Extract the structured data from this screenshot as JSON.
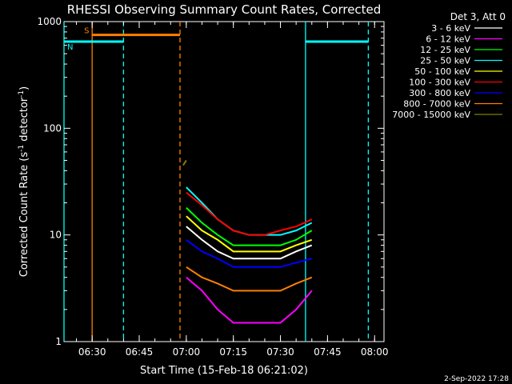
{
  "colors": {
    "background": "#000000",
    "foreground": "#ffffff",
    "saa": "#ff7f00",
    "night": "#00ffff"
  },
  "chart_data": {
    "type": "line",
    "title": "RHESSI Observing Summary Count Rates, Corrected",
    "xlabel": "Start Time (15-Feb-18 06:21:02)",
    "ylabel": "Corrected Count Rate (s⁻¹ detector⁻¹)",
    "ylabel_parts": [
      "Corrected Count Rate (s",
      "-1",
      " detector",
      "-1",
      ")"
    ],
    "yscale": "log",
    "ylim": [
      1,
      1000
    ],
    "ytick_labels": [
      "1",
      "10",
      "100",
      "1000"
    ],
    "ytick_values": [
      1,
      10,
      100,
      1000
    ],
    "xlim": [
      "06:21:02",
      "08:03:00"
    ],
    "xtick_labels": [
      "06:30",
      "06:45",
      "07:00",
      "07:15",
      "07:30",
      "07:45",
      "08:00"
    ],
    "grid": false,
    "legend_placement": "right",
    "legend_title": "Det 3, Att 0",
    "series": [
      {
        "name": "3 - 6 keV",
        "color": "#ffffff",
        "x": [
          "07:00",
          "07:05",
          "07:10",
          "07:15",
          "07:20",
          "07:25",
          "07:30",
          "07:35",
          "07:40"
        ],
        "values": [
          12,
          9,
          7,
          6,
          6,
          6,
          6,
          7,
          8
        ]
      },
      {
        "name": "6 - 12 keV",
        "color": "#ff00ff",
        "x": [
          "07:00",
          "07:05",
          "07:10",
          "07:15",
          "07:20",
          "07:25",
          "07:30",
          "07:35",
          "07:40"
        ],
        "values": [
          4,
          3,
          2,
          1.5,
          1.5,
          1.5,
          1.5,
          2,
          3
        ]
      },
      {
        "name": "12 - 25 keV",
        "color": "#00ff00",
        "x": [
          "07:00",
          "07:05",
          "07:10",
          "07:15",
          "07:20",
          "07:25",
          "07:30",
          "07:35",
          "07:40"
        ],
        "values": [
          18,
          13,
          10,
          8,
          8,
          8,
          8,
          9,
          11
        ]
      },
      {
        "name": "25 - 50 keV",
        "color": "#00ffff",
        "x": [
          "07:00",
          "07:05",
          "07:10",
          "07:15",
          "07:20",
          "07:25",
          "07:30",
          "07:35",
          "07:40"
        ],
        "values": [
          28,
          20,
          14,
          11,
          10,
          10,
          10,
          11,
          13
        ]
      },
      {
        "name": "50 - 100 keV",
        "color": "#ffff00",
        "x": [
          "07:00",
          "07:05",
          "07:10",
          "07:15",
          "07:20",
          "07:25",
          "07:30",
          "07:35",
          "07:40"
        ],
        "values": [
          15,
          11,
          9,
          7,
          7,
          7,
          7,
          8,
          9
        ]
      },
      {
        "name": "100 - 300 keV",
        "color": "#ff0000",
        "x": [
          "07:00",
          "07:05",
          "07:10",
          "07:15",
          "07:20",
          "07:25",
          "07:30",
          "07:35",
          "07:40"
        ],
        "values": [
          25,
          19,
          14,
          11,
          10,
          10,
          11,
          12,
          14
        ]
      },
      {
        "name": "300 - 800 keV",
        "color": "#0000ff",
        "x": [
          "07:00",
          "07:05",
          "07:10",
          "07:15",
          "07:20",
          "07:25",
          "07:30",
          "07:35",
          "07:40"
        ],
        "values": [
          9,
          7,
          6,
          5,
          5,
          5,
          5,
          5.5,
          6
        ]
      },
      {
        "name": "800 - 7000 keV",
        "color": "#ff7f00",
        "x": [
          "07:00",
          "07:05",
          "07:10",
          "07:15",
          "07:20",
          "07:25",
          "07:30",
          "07:35",
          "07:40"
        ],
        "values": [
          5,
          4,
          3.5,
          3,
          3,
          3,
          3,
          3.5,
          4
        ]
      },
      {
        "name": "7000 - 15000 keV",
        "color": "#7f7f00",
        "x": [
          "06:59",
          "07:00"
        ],
        "values": [
          45,
          50
        ]
      }
    ],
    "annotations": [
      {
        "text": "S",
        "color": "#ff7f00",
        "x_start": "06:30",
        "x_end": "06:58",
        "y": 750
      },
      {
        "text": "N",
        "color": "#00ffff",
        "x_start": "06:21:02",
        "x_end": "06:40",
        "y": 650
      },
      {
        "text": "",
        "color": "#00ffff",
        "x_start": "07:38",
        "x_end": "07:58",
        "y": 650
      }
    ],
    "vlines": [
      {
        "x": "06:21:02",
        "color": "#00ffff",
        "style": "solid"
      },
      {
        "x": "06:30",
        "color": "#ff7f00",
        "style": "solid"
      },
      {
        "x": "06:40",
        "color": "#00ffff",
        "style": "dashed"
      },
      {
        "x": "06:58",
        "color": "#ff7f00",
        "style": "dashed"
      },
      {
        "x": "07:38",
        "color": "#00ffff",
        "style": "solid"
      },
      {
        "x": "07:58",
        "color": "#00ffff",
        "style": "dashed"
      }
    ]
  },
  "footer": {
    "date": "2-Sep-2022 17:28"
  }
}
